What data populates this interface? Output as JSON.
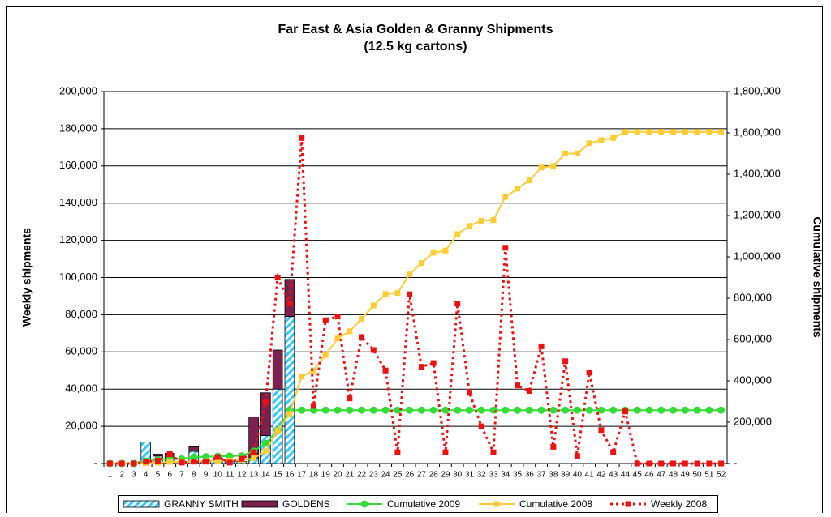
{
  "chart_data": {
    "type": "combo",
    "title": "Far East & Asia Golden & Granny Shipments",
    "subtitle": "(12.5 kg cartons)",
    "y_label": "Weekly shipments",
    "y2_label": "Cumulative shipments",
    "categories": [
      "1",
      "2",
      "3",
      "4",
      "5",
      "6",
      "7",
      "8",
      "9",
      "10",
      "11",
      "12",
      "13",
      "14",
      "15",
      "16",
      "17",
      "18",
      "19",
      "20",
      "21",
      "22",
      "23",
      "24",
      "25",
      "26",
      "27",
      "28",
      "29",
      "30",
      "31",
      "32",
      "33",
      "34",
      "35",
      "36",
      "37",
      "38",
      "39",
      "40",
      "41",
      "42",
      "43",
      "44",
      "45",
      "46",
      "47",
      "48",
      "49",
      "50",
      "51",
      "52"
    ],
    "ylim": [
      0,
      200000
    ],
    "yticks": [
      {
        "value": 0,
        "label": "-"
      },
      {
        "value": 20000,
        "label": "20,000"
      },
      {
        "value": 40000,
        "label": "40,000"
      },
      {
        "value": 60000,
        "label": "60,000"
      },
      {
        "value": 80000,
        "label": "80,000"
      },
      {
        "value": 100000,
        "label": "100,000"
      },
      {
        "value": 120000,
        "label": "120,000"
      },
      {
        "value": 140000,
        "label": "140,000"
      },
      {
        "value": 160000,
        "label": "160,000"
      },
      {
        "value": 180000,
        "label": "180,000"
      },
      {
        "value": 200000,
        "label": "200,000"
      }
    ],
    "y2lim": [
      0,
      1800000
    ],
    "y2ticks": [
      {
        "value": 0,
        "label": "-"
      },
      {
        "value": 200000,
        "label": "200,000"
      },
      {
        "value": 400000,
        "label": "400,000"
      },
      {
        "value": 600000,
        "label": "600,000"
      },
      {
        "value": 800000,
        "label": "800,000"
      },
      {
        "value": 1000000,
        "label": "1,000,000"
      },
      {
        "value": 1200000,
        "label": "1,200,000"
      },
      {
        "value": 1400000,
        "label": "1,400,000"
      },
      {
        "value": 1600000,
        "label": "1,600,000"
      },
      {
        "value": 1800000,
        "label": "1,800,000"
      }
    ],
    "grid": true,
    "legend": "bottom",
    "series": [
      {
        "name": "GRANNY SMITH",
        "kind": "bar",
        "color": "#33ccff",
        "values": [
          0,
          0,
          0,
          11500,
          4000,
          3000,
          0,
          6500,
          1000,
          2000,
          1000,
          1000,
          3000,
          15000,
          40000,
          79000,
          null,
          null,
          null,
          null,
          null,
          null,
          null,
          null,
          null,
          null,
          null,
          null,
          null,
          null,
          null,
          null,
          null,
          null,
          null,
          null,
          null,
          null,
          null,
          null,
          null,
          null,
          null,
          null,
          null,
          null,
          null,
          null,
          null,
          null,
          null,
          null
        ]
      },
      {
        "name": "GOLDENS",
        "kind": "bar",
        "color": "#7b2150",
        "values": [
          0,
          0,
          0,
          0,
          1000,
          2500,
          0,
          2500,
          0,
          1000,
          0,
          0,
          22000,
          23000,
          21000,
          20000,
          null,
          null,
          null,
          null,
          null,
          null,
          null,
          null,
          null,
          null,
          null,
          null,
          null,
          null,
          null,
          null,
          null,
          null,
          null,
          null,
          null,
          null,
          null,
          null,
          null,
          null,
          null,
          null,
          null,
          null,
          null,
          null,
          null,
          null,
          null,
          null
        ]
      },
      {
        "name": "Cumulative 2009",
        "kind": "line",
        "axis": "y2",
        "color": "#33dd33",
        "marker": "circle",
        "values": [
          0,
          0,
          0,
          12000,
          17000,
          22000,
          22000,
          31000,
          33000,
          35000,
          36000,
          37000,
          60000,
          98000,
          160000,
          258000,
          258000,
          258000,
          258000,
          258000,
          258000,
          258000,
          258000,
          258000,
          258000,
          258000,
          258000,
          258000,
          258000,
          258000,
          258000,
          258000,
          258000,
          258000,
          258000,
          258000,
          258000,
          258000,
          258000,
          258000,
          258000,
          258000,
          258000,
          258000,
          258000,
          258000,
          258000,
          258000,
          258000,
          258000,
          258000,
          258000
        ]
      },
      {
        "name": "Cumulative 2008",
        "kind": "line",
        "axis": "y2",
        "color": "#ffcc33",
        "marker": "square",
        "values": [
          0,
          0,
          0,
          2000,
          4000,
          8000,
          9000,
          10000,
          11000,
          13000,
          14000,
          17000,
          25000,
          60000,
          160000,
          240000,
          420000,
          450000,
          525000,
          605000,
          640000,
          700000,
          765000,
          820000,
          825000,
          915000,
          970000,
          1020000,
          1030000,
          1110000,
          1150000,
          1175000,
          1178000,
          1290000,
          1330000,
          1370000,
          1432000,
          1440000,
          1500000,
          1500000,
          1550000,
          1565000,
          1575000,
          1605000,
          1605000,
          1605000,
          1605000,
          1605000,
          1605000,
          1605000,
          1605000,
          1605000
        ]
      },
      {
        "name": "Weekly 2008",
        "kind": "line",
        "dashed": true,
        "color": "#ee1111",
        "marker": "square",
        "values": [
          0,
          0,
          0,
          1000,
          1500,
          5000,
          500,
          1000,
          1000,
          3500,
          500,
          2500,
          6000,
          33000,
          100000,
          86000,
          175000,
          31000,
          77000,
          79000,
          35000,
          68000,
          61000,
          50000,
          6000,
          91000,
          52000,
          54000,
          6000,
          86000,
          38000,
          20000,
          6000,
          116000,
          42000,
          39000,
          63000,
          9000,
          55000,
          4000,
          49000,
          18000,
          6000,
          28000,
          0,
          0,
          0,
          0,
          0,
          0,
          0,
          0
        ]
      }
    ]
  }
}
